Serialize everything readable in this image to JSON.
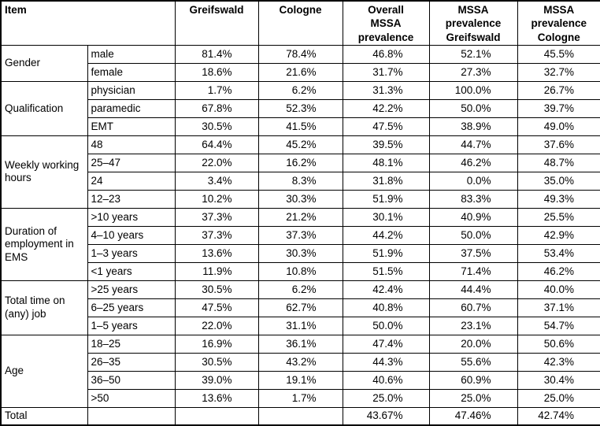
{
  "table": {
    "header": {
      "item": "Item",
      "cols": [
        "Greifswald",
        "Cologne",
        "Overall\nMSSA\nprevalence",
        "MSSA\nprevalence\nGreifswald",
        "MSSA\nprevalence\nCologne"
      ]
    },
    "groups": [
      {
        "label": "Gender",
        "rows": [
          {
            "label": "male",
            "values": [
              "81.4%",
              "78.4%",
              "46.8%",
              "52.1%",
              "45.5%"
            ]
          },
          {
            "label": "female",
            "values": [
              "18.6%",
              "21.6%",
              "31.7%",
              "27.3%",
              "32.7%"
            ]
          }
        ]
      },
      {
        "label": "Qualification",
        "rows": [
          {
            "label": "physician",
            "values": [
              "1.7%",
              "6.2%",
              "31.3%",
              "100.0%",
              "26.7%"
            ]
          },
          {
            "label": "paramedic",
            "values": [
              "67.8%",
              "52.3%",
              "42.2%",
              "50.0%",
              "39.7%"
            ]
          },
          {
            "label": "EMT",
            "values": [
              "30.5%",
              "41.5%",
              "47.5%",
              "38.9%",
              "49.0%"
            ]
          }
        ]
      },
      {
        "label": "Weekly working hours",
        "rows": [
          {
            "label": "48",
            "values": [
              "64.4%",
              "45.2%",
              "39.5%",
              "44.7%",
              "37.6%"
            ]
          },
          {
            "label": "25–47",
            "values": [
              "22.0%",
              "16.2%",
              "48.1%",
              "46.2%",
              "48.7%"
            ]
          },
          {
            "label": "24",
            "values": [
              "3.4%",
              "8.3%",
              "31.8%",
              "0.0%",
              "35.0%"
            ]
          },
          {
            "label": "12–23",
            "values": [
              "10.2%",
              "30.3%",
              "51.9%",
              "83.3%",
              "49.3%"
            ]
          }
        ]
      },
      {
        "label": "Duration of employment in EMS",
        "rows": [
          {
            "label": ">10 years",
            "values": [
              "37.3%",
              "21.2%",
              "30.1%",
              "40.9%",
              "25.5%"
            ]
          },
          {
            "label": "4–10 years",
            "values": [
              "37.3%",
              "37.3%",
              "44.2%",
              "50.0%",
              "42.9%"
            ]
          },
          {
            "label": "1–3 years",
            "values": [
              "13.6%",
              "30.3%",
              "51.9%",
              "37.5%",
              "53.4%"
            ]
          },
          {
            "label": "<1 years",
            "values": [
              "11.9%",
              "10.8%",
              "51.5%",
              "71.4%",
              "46.2%"
            ]
          }
        ]
      },
      {
        "label": "Total time on (any) job",
        "rows": [
          {
            "label": ">25 years",
            "values": [
              "30.5%",
              "6.2%",
              "42.4%",
              "44.4%",
              "40.0%"
            ]
          },
          {
            "label": "6–25 years",
            "values": [
              "47.5%",
              "62.7%",
              "40.8%",
              "60.7%",
              "37.1%"
            ]
          },
          {
            "label": "1–5 years",
            "values": [
              "22.0%",
              "31.1%",
              "50.0%",
              "23.1%",
              "54.7%"
            ]
          }
        ]
      },
      {
        "label": "Age",
        "rows": [
          {
            "label": "18–25",
            "values": [
              "16.9%",
              "36.1%",
              "47.4%",
              "20.0%",
              "50.6%"
            ]
          },
          {
            "label": "26–35",
            "values": [
              "30.5%",
              "43.2%",
              "44.3%",
              "55.6%",
              "42.3%"
            ]
          },
          {
            "label": "36–50",
            "values": [
              "39.0%",
              "19.1%",
              "40.6%",
              "60.9%",
              "30.4%"
            ]
          },
          {
            "label": ">50",
            "values": [
              "13.6%",
              "1.7%",
              "25.0%",
              "25.0%",
              "25.0%"
            ]
          }
        ]
      }
    ],
    "total_row": {
      "label": "Total",
      "values": [
        "",
        "",
        "43.67%",
        "47.46%",
        "42.74%"
      ]
    }
  }
}
